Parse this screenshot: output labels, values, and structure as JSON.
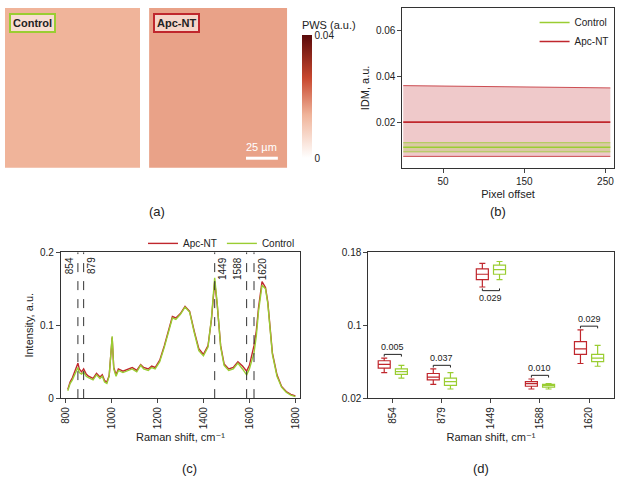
{
  "chart_data": [
    {
      "type": "heatmap",
      "panel": "(a)",
      "panels": [
        {
          "label": "Control",
          "color": "#9acd32",
          "cells": [
            [
              0.014
            ]
          ]
        },
        {
          "label": "Apc-NT",
          "color": "#c0272d",
          "cells": [
            [
              0.016
            ]
          ]
        }
      ],
      "colorbar": {
        "title": "PWS (a.u.)",
        "range": [
          0,
          0.04
        ],
        "ticks": [
          0,
          0.04
        ]
      },
      "scale_bar": "25 µm"
    },
    {
      "type": "line",
      "panel": "(b)",
      "x_label": "Pixel offset",
      "y_label": "IDM, a.u.",
      "x": [
        1,
        256
      ],
      "series": [
        {
          "name": "Apc-NT",
          "color": "#c0272d",
          "values": [
            0.02,
            0.02
          ],
          "lower": [
            0.005,
            0.005
          ],
          "upper": [
            0.036,
            0.035
          ]
        },
        {
          "name": "Control",
          "color": "#9acd32",
          "values": [
            0.009,
            0.009
          ],
          "lower": [
            0.007,
            0.007
          ],
          "upper": [
            0.011,
            0.011
          ]
        }
      ],
      "xlim": [
        0,
        260
      ],
      "xticks": [
        50,
        150,
        250
      ],
      "ylim": [
        0,
        0.07
      ],
      "yticks": [
        0.02,
        0.04,
        0.06
      ],
      "grid": false,
      "legend": "top right"
    },
    {
      "type": "line",
      "panel": "(c)",
      "x_label": "Raman shift, cm⁻¹",
      "y_label": "Intensity, a.u.",
      "x": [
        810,
        820,
        830,
        840,
        850,
        854,
        860,
        870,
        879,
        890,
        900,
        920,
        935,
        950,
        960,
        970,
        980,
        990,
        1003,
        1010,
        1020,
        1030,
        1050,
        1070,
        1090,
        1100,
        1110,
        1127,
        1140,
        1160,
        1175,
        1190,
        1210,
        1230,
        1250,
        1265,
        1280,
        1300,
        1320,
        1340,
        1360,
        1380,
        1400,
        1420,
        1435,
        1449,
        1460,
        1475,
        1490,
        1510,
        1530,
        1550,
        1570,
        1588,
        1600,
        1610,
        1620,
        1630,
        1640,
        1655,
        1670,
        1680,
        1690,
        1700,
        1720,
        1740,
        1760,
        1780,
        1800
      ],
      "series": [
        {
          "name": "Apc-NT",
          "color": "#c0272d",
          "values": [
            0.012,
            0.022,
            0.028,
            0.036,
            0.046,
            0.048,
            0.04,
            0.036,
            0.04,
            0.033,
            0.03,
            0.027,
            0.034,
            0.029,
            0.032,
            0.024,
            0.022,
            0.031,
            0.083,
            0.042,
            0.032,
            0.04,
            0.037,
            0.04,
            0.042,
            0.04,
            0.038,
            0.046,
            0.042,
            0.04,
            0.044,
            0.042,
            0.052,
            0.072,
            0.097,
            0.112,
            0.11,
            0.116,
            0.126,
            0.119,
            0.092,
            0.068,
            0.06,
            0.072,
            0.108,
            0.16,
            0.128,
            0.072,
            0.047,
            0.04,
            0.042,
            0.05,
            0.044,
            0.037,
            0.045,
            0.058,
            0.072,
            0.092,
            0.125,
            0.16,
            0.152,
            0.132,
            0.097,
            0.062,
            0.032,
            0.016,
            0.009,
            0.005,
            0.003
          ]
        },
        {
          "name": "Control",
          "color": "#9acd32",
          "values": [
            0.01,
            0.02,
            0.025,
            0.032,
            0.04,
            0.042,
            0.035,
            0.033,
            0.036,
            0.03,
            0.028,
            0.025,
            0.032,
            0.027,
            0.03,
            0.022,
            0.02,
            0.03,
            0.085,
            0.04,
            0.03,
            0.038,
            0.035,
            0.038,
            0.04,
            0.038,
            0.036,
            0.045,
            0.04,
            0.038,
            0.042,
            0.04,
            0.05,
            0.07,
            0.095,
            0.11,
            0.108,
            0.115,
            0.125,
            0.118,
            0.09,
            0.065,
            0.058,
            0.07,
            0.11,
            0.165,
            0.13,
            0.07,
            0.045,
            0.038,
            0.04,
            0.048,
            0.04,
            0.032,
            0.04,
            0.05,
            0.062,
            0.085,
            0.12,
            0.155,
            0.15,
            0.13,
            0.095,
            0.06,
            0.03,
            0.015,
            0.008,
            0.004,
            0.002
          ]
        }
      ],
      "markers": [
        854,
        879,
        1449,
        1588,
        1620
      ],
      "xlim": [
        780,
        1820
      ],
      "xticks": [
        800,
        1000,
        1200,
        1400,
        1600,
        1800
      ],
      "ylim": [
        0,
        0.2
      ],
      "yticks": [
        0,
        0.1,
        0.2
      ],
      "grid": false,
      "legend": "top right",
      "line_style": "dashed"
    },
    {
      "type": "box",
      "panel": "(d)",
      "x_label": "Raman shift, cm⁻¹",
      "categories": [
        "854",
        "879",
        "1449",
        "1588",
        "1620"
      ],
      "series": [
        {
          "name": "Apc-NT",
          "color": "#c0272d",
          "lowerfence": [
            0.048,
            0.035,
            0.142,
            0.03,
            0.058
          ],
          "q1": [
            0.053,
            0.04,
            0.15,
            0.033,
            0.068
          ],
          "median": [
            0.057,
            0.043,
            0.156,
            0.036,
            0.074
          ],
          "q3": [
            0.061,
            0.047,
            0.162,
            0.038,
            0.082
          ],
          "upperfence": [
            0.064,
            0.052,
            0.168,
            0.041,
            0.095
          ]
        },
        {
          "name": "Control",
          "color": "#9acd32",
          "lowerfence": [
            0.042,
            0.03,
            0.15,
            0.03,
            0.055
          ],
          "q1": [
            0.046,
            0.034,
            0.156,
            0.032,
            0.06
          ],
          "median": [
            0.049,
            0.038,
            0.161,
            0.034,
            0.064
          ],
          "q3": [
            0.052,
            0.042,
            0.166,
            0.035,
            0.068
          ],
          "upperfence": [
            0.056,
            0.048,
            0.17,
            0.036,
            0.078
          ]
        }
      ],
      "p_values": [
        "0.005",
        "0.037",
        "0.029",
        "0.010",
        "0.029"
      ],
      "ylim": [
        0.02,
        0.18
      ],
      "yticks": [
        0.02,
        0.1,
        0.18
      ],
      "grid": false
    }
  ]
}
